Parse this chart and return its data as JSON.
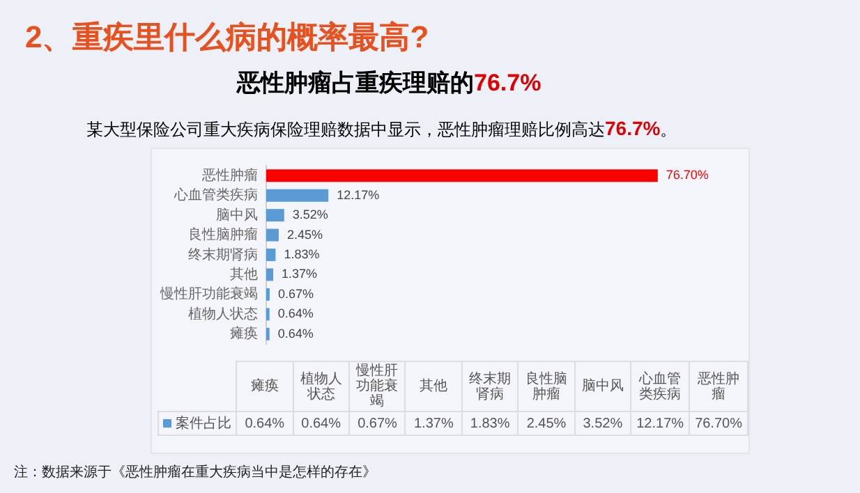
{
  "chart_data": {
    "type": "bar",
    "orientation": "horizontal",
    "title": "2、重疾里什么病的概率最高?",
    "subtitle": "恶性肿瘤占重疾理赔的76.7%",
    "annotations": [
      "某大型保险公司重大疾病保险理赔数据中显示，恶性肿瘤理赔比例高达76.7%。",
      "注：数据来源于《恶性肿瘤在重大疾病当中是怎样的存在》"
    ],
    "categories": [
      "恶性肿瘤",
      "心血管类疾病",
      "脑中风",
      "良性脑肿瘤",
      "终末期肾病",
      "其他",
      "慢性肝功能衰竭",
      "植物人状态",
      "瘫痪"
    ],
    "series": [
      {
        "name": "案件占比",
        "color": "#5b9bd5",
        "colors": [
          "#ff0000",
          "#5b9bd5",
          "#5b9bd5",
          "#5b9bd5",
          "#5b9bd5",
          "#5b9bd5",
          "#5b9bd5",
          "#5b9bd5",
          "#5b9bd5"
        ],
        "values": [
          76.7,
          12.17,
          3.52,
          2.45,
          1.83,
          1.37,
          0.67,
          0.64,
          0.64
        ],
        "value_labels": [
          "76.70%",
          "12.17%",
          "3.52%",
          "2.45%",
          "1.83%",
          "1.37%",
          "0.67%",
          "0.64%",
          "0.64%"
        ]
      }
    ],
    "legend": "bottom",
    "grid": false
  }
}
